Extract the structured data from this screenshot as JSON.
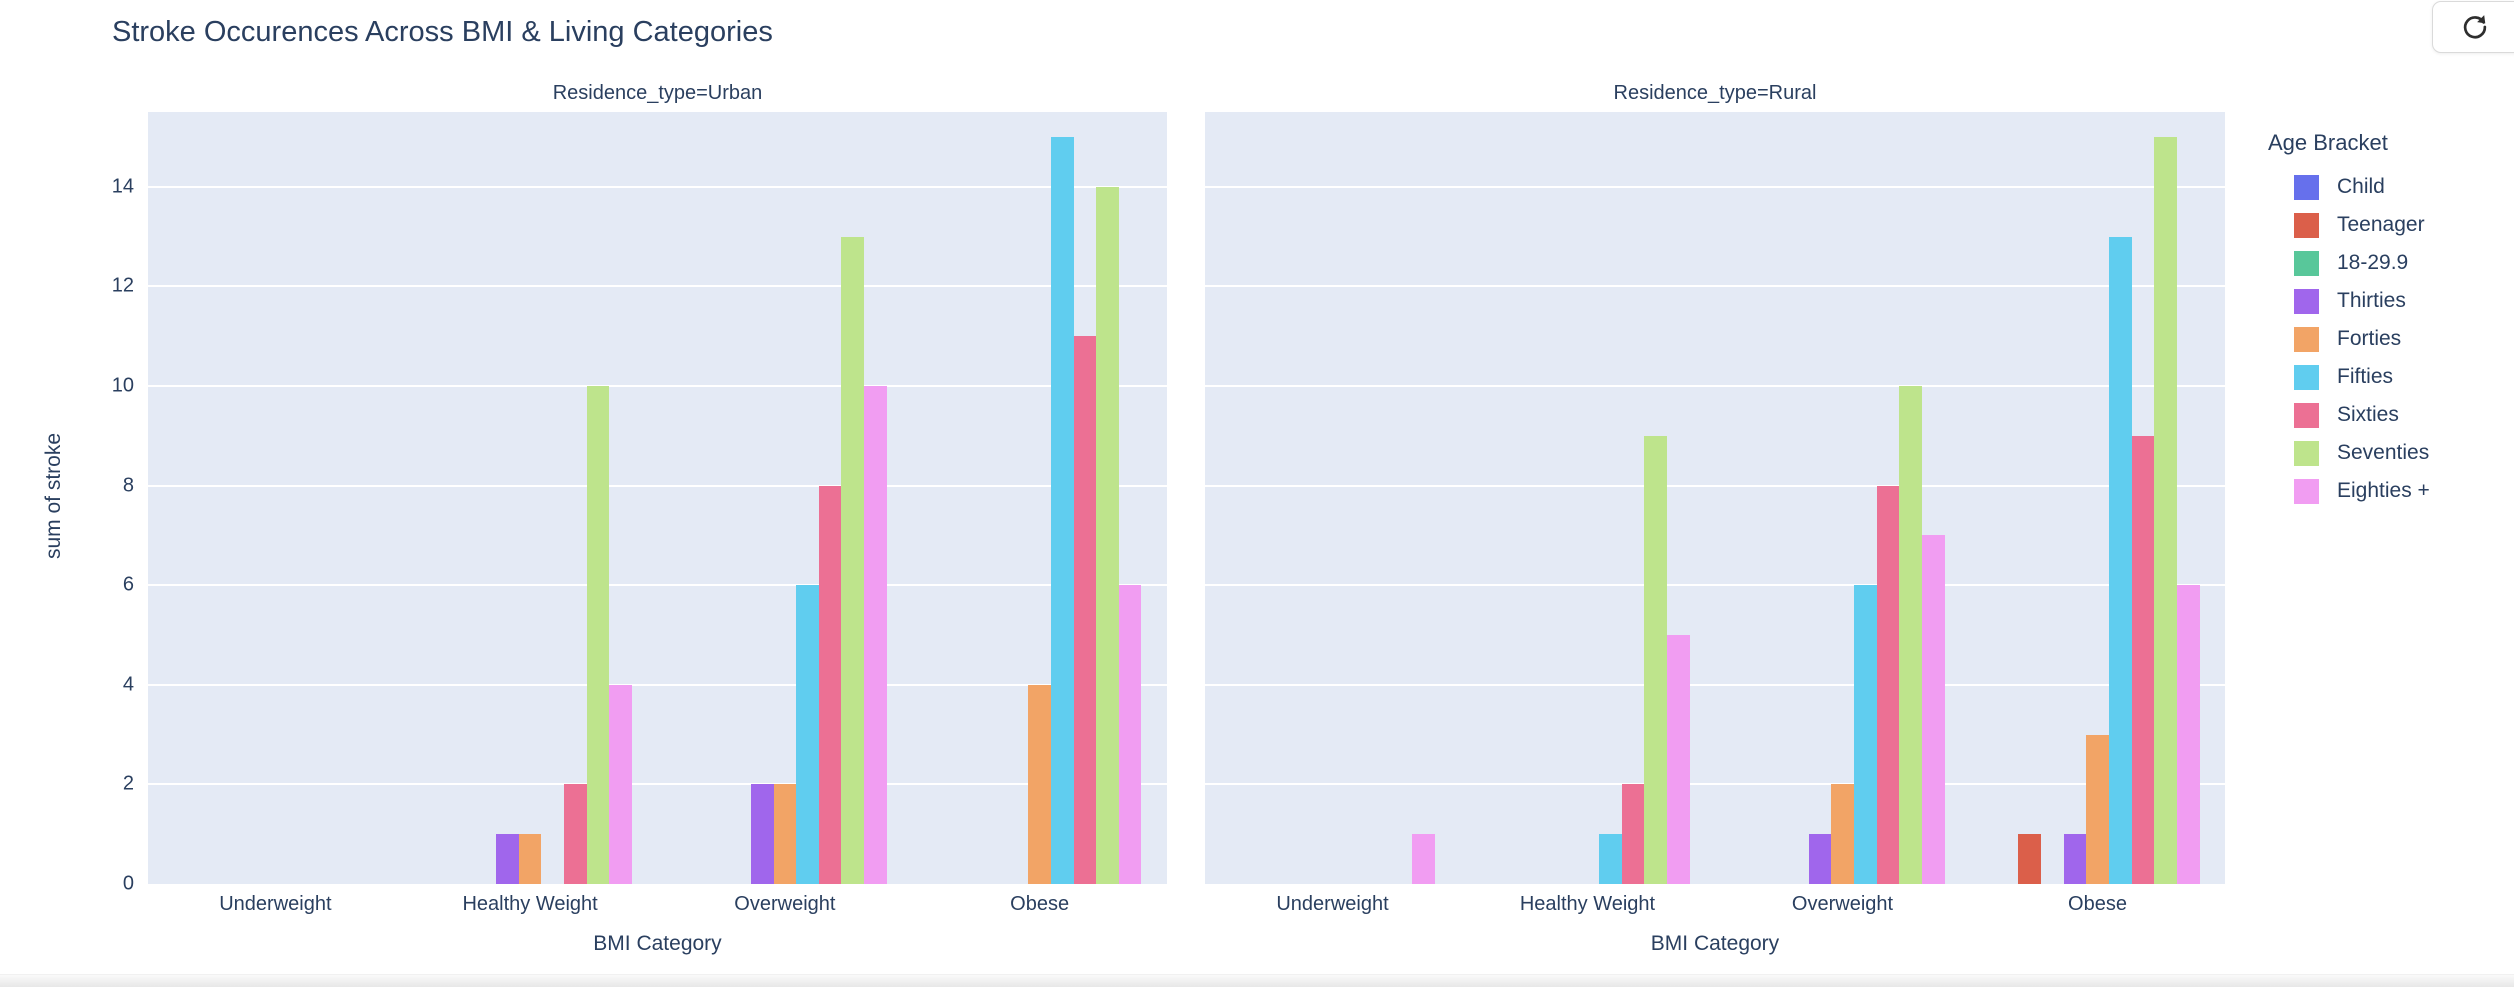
{
  "page": {
    "refresh_button": {
      "icon": "refresh-icon"
    }
  },
  "chart_data": {
    "type": "bar",
    "title": "Stroke Occurences Across BMI & Living Categories",
    "xlabel": "BMI Category",
    "ylabel": "sum of stroke",
    "legend_title": "Age Bracket",
    "legend_position": "right",
    "grid": true,
    "plot_bg": "#E4EAF5",
    "text_color": "#2a3f5f",
    "ylim": [
      0,
      15.5
    ],
    "yticks": [
      0,
      2,
      4,
      6,
      8,
      10,
      12,
      14
    ],
    "categories": [
      "Underweight",
      "Healthy Weight",
      "Overweight",
      "Obese"
    ],
    "facets": [
      {
        "label": "Residence_type=Urban"
      },
      {
        "label": "Residence_type=Rural"
      }
    ],
    "series": [
      {
        "name": "Child",
        "color": "#6670EC",
        "values_by_facet": [
          [
            0,
            0,
            0,
            0
          ],
          [
            0,
            0,
            0,
            0
          ]
        ]
      },
      {
        "name": "Teenager",
        "color": "#DB5F4A",
        "values_by_facet": [
          [
            0,
            0,
            0,
            0
          ],
          [
            0,
            0,
            0,
            1
          ]
        ]
      },
      {
        "name": "18-29.9",
        "color": "#58C79A",
        "values_by_facet": [
          [
            0,
            0,
            0,
            0
          ],
          [
            0,
            0,
            0,
            0
          ]
        ]
      },
      {
        "name": "Thirties",
        "color": "#A066EC",
        "values_by_facet": [
          [
            0,
            1,
            2,
            0
          ],
          [
            0,
            0,
            1,
            1
          ]
        ]
      },
      {
        "name": "Forties",
        "color": "#F2A466",
        "values_by_facet": [
          [
            0,
            1,
            2,
            4
          ],
          [
            0,
            0,
            2,
            3
          ]
        ]
      },
      {
        "name": "Fifties",
        "color": "#60CDEF",
        "values_by_facet": [
          [
            0,
            0,
            6,
            15
          ],
          [
            0,
            1,
            6,
            13
          ]
        ]
      },
      {
        "name": "Sixties",
        "color": "#EC7094",
        "values_by_facet": [
          [
            0,
            2,
            8,
            11
          ],
          [
            0,
            2,
            8,
            9
          ]
        ]
      },
      {
        "name": "Seventies",
        "color": "#BEE48C",
        "values_by_facet": [
          [
            0,
            10,
            13,
            14
          ],
          [
            0,
            9,
            10,
            15
          ]
        ]
      },
      {
        "name": "Eighties +",
        "color": "#F19DF2",
        "values_by_facet": [
          [
            0,
            4,
            10,
            6
          ],
          [
            1,
            5,
            7,
            6
          ]
        ]
      }
    ]
  }
}
